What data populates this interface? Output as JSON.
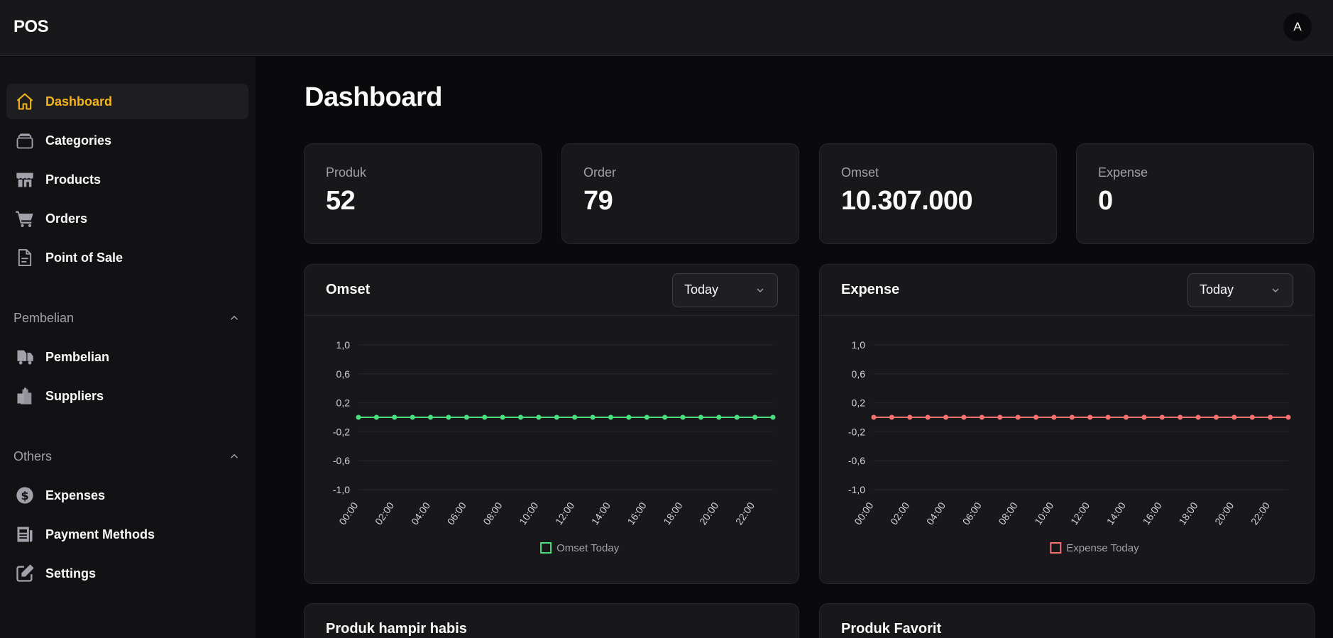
{
  "app": {
    "brand": "POS",
    "avatar_initial": "A"
  },
  "sidebar": {
    "main_items": [
      {
        "label": "Dashboard",
        "icon": "home-icon",
        "active": true
      },
      {
        "label": "Categories",
        "icon": "layers-icon"
      },
      {
        "label": "Products",
        "icon": "store-icon"
      },
      {
        "label": "Orders",
        "icon": "cart-icon"
      },
      {
        "label": "Point of Sale",
        "icon": "document-icon"
      }
    ],
    "sections": [
      {
        "title": "Pembelian",
        "items": [
          {
            "label": "Pembelian",
            "icon": "truck-icon"
          },
          {
            "label": "Suppliers",
            "icon": "clipboard-icon"
          }
        ]
      },
      {
        "title": "Others",
        "items": [
          {
            "label": "Expenses",
            "icon": "dollar-icon"
          },
          {
            "label": "Payment Methods",
            "icon": "newspaper-icon"
          },
          {
            "label": "Settings",
            "icon": "edit-icon"
          }
        ]
      }
    ]
  },
  "page": {
    "title": "Dashboard"
  },
  "stats": [
    {
      "label": "Produk",
      "value": "52"
    },
    {
      "label": "Order",
      "value": "79"
    },
    {
      "label": "Omset",
      "value": "10.307.000"
    },
    {
      "label": "Expense",
      "value": "0"
    }
  ],
  "charts": [
    {
      "title": "Omset",
      "filter": "Today"
    },
    {
      "title": "Expense",
      "filter": "Today"
    }
  ],
  "chart_data": [
    {
      "type": "line",
      "title": "Omset",
      "x": [
        "00:00",
        "01:00",
        "02:00",
        "03:00",
        "04:00",
        "05:00",
        "06:00",
        "07:00",
        "08:00",
        "09:00",
        "10:00",
        "11:00",
        "12:00",
        "13:00",
        "14:00",
        "15:00",
        "16:00",
        "17:00",
        "18:00",
        "19:00",
        "20:00",
        "21:00",
        "22:00",
        "23:00"
      ],
      "x_tick_labels": [
        "00:00",
        "02:00",
        "04:00",
        "06:00",
        "08:00",
        "10:00",
        "12:00",
        "14:00",
        "16:00",
        "18:00",
        "20:00",
        "22:00"
      ],
      "y_tick_labels": [
        "1,0",
        "0,6",
        "0,2",
        "-0,2",
        "-0,6",
        "-1,0"
      ],
      "ylim": [
        -1,
        1
      ],
      "series": [
        {
          "name": "Omset Today",
          "color": "#4ade80",
          "values": [
            0,
            0,
            0,
            0,
            0,
            0,
            0,
            0,
            0,
            0,
            0,
            0,
            0,
            0,
            0,
            0,
            0,
            0,
            0,
            0,
            0,
            0,
            0,
            0
          ]
        }
      ],
      "grid": true,
      "legend": "bottom"
    },
    {
      "type": "line",
      "title": "Expense",
      "x": [
        "00:00",
        "01:00",
        "02:00",
        "03:00",
        "04:00",
        "05:00",
        "06:00",
        "07:00",
        "08:00",
        "09:00",
        "10:00",
        "11:00",
        "12:00",
        "13:00",
        "14:00",
        "15:00",
        "16:00",
        "17:00",
        "18:00",
        "19:00",
        "20:00",
        "21:00",
        "22:00",
        "23:00"
      ],
      "x_tick_labels": [
        "00:00",
        "02:00",
        "04:00",
        "06:00",
        "08:00",
        "10:00",
        "12:00",
        "14:00",
        "16:00",
        "18:00",
        "20:00",
        "22:00"
      ],
      "y_tick_labels": [
        "1,0",
        "0,6",
        "0,2",
        "-0,2",
        "-0,6",
        "-1,0"
      ],
      "ylim": [
        -1,
        1
      ],
      "series": [
        {
          "name": "Expense Today",
          "color": "#f87171",
          "values": [
            0,
            0,
            0,
            0,
            0,
            0,
            0,
            0,
            0,
            0,
            0,
            0,
            0,
            0,
            0,
            0,
            0,
            0,
            0,
            0,
            0,
            0,
            0,
            0
          ]
        }
      ],
      "grid": true,
      "legend": "bottom"
    }
  ],
  "bottom_cards": [
    {
      "title": "Produk hampir habis"
    },
    {
      "title": "Produk Favorit"
    }
  ]
}
